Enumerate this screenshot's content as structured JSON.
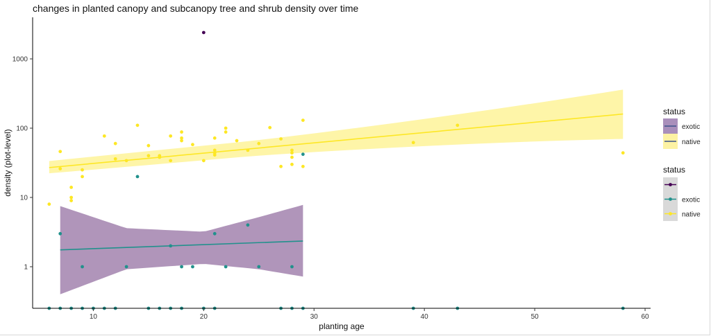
{
  "chart_data": {
    "type": "scatter",
    "title": "changes in planted canopy and subcanopy tree and shrub density over time",
    "xlabel": "planting age",
    "ylabel": "density (plot-level)",
    "xlim": [
      4.5,
      60.5
    ],
    "ylim_log10": [
      -0.6,
      1.42
    ],
    "y_scale": "log10",
    "x_ticks": [
      10,
      20,
      30,
      40,
      50,
      60
    ],
    "x_tick_labels": [
      "10",
      "20",
      "30",
      "40",
      "50",
      "60"
    ],
    "y_ticks": [
      1,
      10,
      100,
      1000
    ],
    "y_tick_labels": [
      "1",
      "10",
      "100",
      "1000"
    ],
    "grid": false,
    "colors": {
      "dark": "#440154",
      "exotic": "#21918c",
      "native": "#fde725"
    },
    "series": [
      {
        "name": "",
        "color": "#440154",
        "points": [
          [
            20,
            2400
          ]
        ]
      },
      {
        "name": "exotic",
        "color": "#21918c",
        "points": [
          [
            7,
            3
          ],
          [
            9,
            1
          ],
          [
            13,
            1
          ],
          [
            14,
            20
          ],
          [
            17,
            2
          ],
          [
            18,
            1
          ],
          [
            19,
            1
          ],
          [
            21,
            3
          ],
          [
            22,
            1
          ],
          [
            24,
            4
          ],
          [
            25,
            1
          ],
          [
            28,
            1
          ],
          [
            29,
            42
          ],
          [
            6,
            0.25
          ],
          [
            7,
            0.25
          ],
          [
            8,
            0.25
          ],
          [
            9,
            0.25
          ],
          [
            10,
            0.25
          ],
          [
            11,
            0.25
          ],
          [
            12,
            0.25
          ],
          [
            15,
            0.25
          ],
          [
            16,
            0.25
          ],
          [
            17,
            0.25
          ],
          [
            18,
            0.25
          ],
          [
            20,
            0.25
          ],
          [
            21,
            0.25
          ],
          [
            27,
            0.25
          ],
          [
            28,
            0.25
          ],
          [
            29,
            0.25
          ],
          [
            39,
            0.25
          ],
          [
            43,
            0.25
          ],
          [
            58,
            0.25
          ]
        ]
      },
      {
        "name": "native",
        "color": "#fde725",
        "points": [
          [
            6,
            8
          ],
          [
            7,
            26
          ],
          [
            7,
            46
          ],
          [
            8,
            9
          ],
          [
            8,
            10
          ],
          [
            8,
            14
          ],
          [
            9,
            20
          ],
          [
            9,
            25
          ],
          [
            11,
            77
          ],
          [
            12,
            36
          ],
          [
            12,
            60
          ],
          [
            13,
            34
          ],
          [
            14,
            110
          ],
          [
            15,
            40
          ],
          [
            15,
            56
          ],
          [
            16,
            38
          ],
          [
            16,
            40
          ],
          [
            17,
            34
          ],
          [
            17,
            77
          ],
          [
            18,
            66
          ],
          [
            18,
            72
          ],
          [
            18,
            88
          ],
          [
            19,
            58
          ],
          [
            20,
            34
          ],
          [
            21,
            41
          ],
          [
            21,
            44
          ],
          [
            21,
            48
          ],
          [
            21,
            72
          ],
          [
            22,
            88
          ],
          [
            22,
            100
          ],
          [
            23,
            66
          ],
          [
            24,
            48
          ],
          [
            25,
            60
          ],
          [
            26,
            102
          ],
          [
            27,
            28
          ],
          [
            27,
            70
          ],
          [
            28,
            30
          ],
          [
            28,
            38
          ],
          [
            28,
            44
          ],
          [
            28,
            48
          ],
          [
            29,
            28
          ],
          [
            29,
            130
          ],
          [
            39,
            62
          ],
          [
            43,
            110
          ],
          [
            58,
            44
          ]
        ]
      }
    ],
    "trend_lines": [
      {
        "name": "native",
        "color": "#fde725",
        "x": [
          6,
          58
        ],
        "y": [
          27,
          160
        ],
        "ci_low": [
          21,
          70
        ],
        "ci_high": [
          36,
          360
        ],
        "ci_color": "#fde725"
      },
      {
        "name": "exotic",
        "color": "#21918c",
        "x": [
          7,
          29
        ],
        "y": [
          1.75,
          2.35
        ],
        "ci_x": [
          7,
          13,
          20,
          25,
          29
        ],
        "ci_low": [
          0.4,
          0.92,
          1.1,
          0.92,
          0.72
        ],
        "ci_high": [
          7.5,
          3.6,
          3.2,
          5.2,
          7.8
        ],
        "ci_color": "#7b4f8c"
      }
    ],
    "legends": [
      {
        "title": "status",
        "kind": "fill",
        "entries": [
          {
            "label": "exotic",
            "fill": "#a98fbb",
            "line": "#3b528b"
          },
          {
            "label": "native",
            "fill": "#fdf2a3",
            "line": "#3b528b"
          }
        ]
      },
      {
        "title": "status",
        "kind": "point",
        "entries": [
          {
            "label": "",
            "color": "#440154"
          },
          {
            "label": "exotic",
            "color": "#21918c"
          },
          {
            "label": "native",
            "color": "#fde725"
          }
        ]
      }
    ]
  }
}
